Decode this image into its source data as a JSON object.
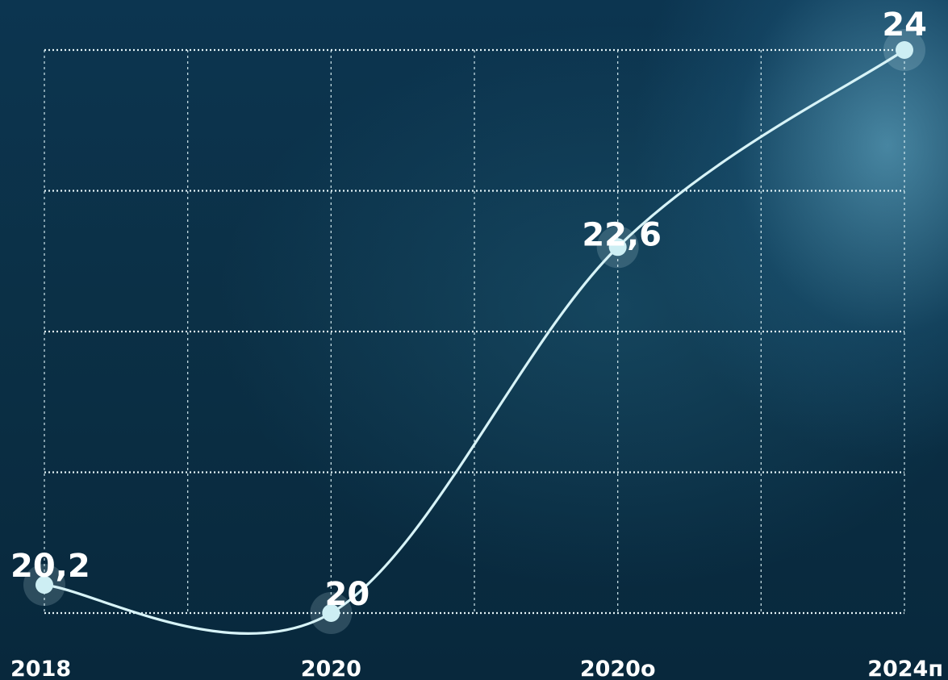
{
  "chart_data": {
    "type": "line",
    "title": "",
    "xlabel": "",
    "ylabel": "",
    "categories": [
      "2018",
      "2020",
      "2020о",
      "2024п"
    ],
    "series": [
      {
        "values": [
          20.2,
          20,
          22.6,
          24
        ],
        "labels": [
          "20,2",
          "20",
          "22,6",
          "24"
        ]
      }
    ],
    "ylim": [
      20,
      24
    ],
    "grid": true,
    "legend": "none",
    "line_color": "#d7f3f7",
    "grid_color": "#e4f3f6"
  }
}
